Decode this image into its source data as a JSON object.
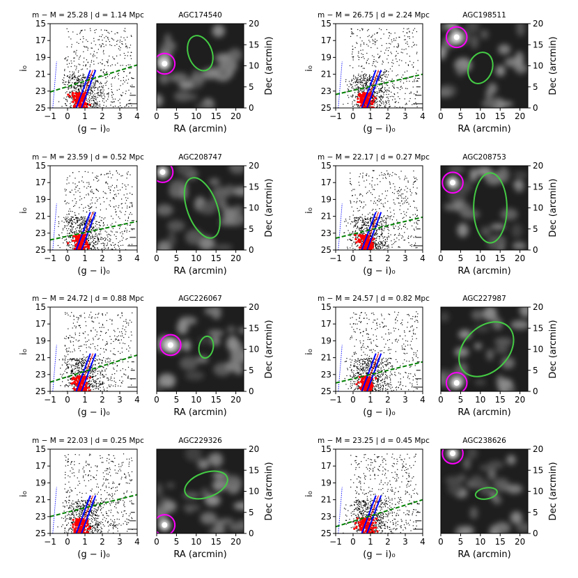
{
  "figure": {
    "cmd_xlabel": "(g − i)₀",
    "cmd_ylabel": "i₀",
    "map_xlabel": "RA (arcmin)",
    "map_ylabel": "Dec (arcmin)"
  },
  "colors": {
    "stars": "#000000",
    "rgb_stars": "#ff0000",
    "isochrone": "#0000ff",
    "completeness": "#008000",
    "galaxy_ellipse": "#44cc44",
    "bright_source_circle": "#ff00ff"
  },
  "chart_data": [
    {
      "type": "scatter",
      "cmd_title": "m − M = 25.28 | d = 1.14 Mpc",
      "map_title": "AGC174540",
      "cmd_xlim": [
        -1,
        4
      ],
      "cmd_ylim": [
        25,
        15
      ],
      "cmd_xticks": [
        "−1",
        "0",
        "1",
        "2",
        "3",
        "4"
      ],
      "cmd_yticks": [
        "15",
        "17",
        "19",
        "21",
        "23",
        "25"
      ],
      "map_xlim": [
        0,
        22
      ],
      "map_ylim": [
        0,
        20
      ],
      "map_xticks": [
        "0",
        "5",
        "10",
        "15",
        "20"
      ],
      "map_yticks": [
        "0",
        "5",
        "10",
        "15",
        "20"
      ],
      "completeness_line": {
        "x": [
          -1,
          4
        ],
        "i": [
          23.1,
          19.9
        ]
      },
      "ellipse": {
        "center": [
          11,
          13
        ],
        "semi_axes": [
          3,
          4.3
        ],
        "angle_deg": -20
      },
      "bright_circle": {
        "center": [
          2,
          10.5
        ],
        "radius": 2.6
      }
    },
    {
      "type": "scatter",
      "cmd_title": "m − M = 26.75 | d = 2.24 Mpc",
      "map_title": "AGC198511",
      "cmd_xlim": [
        -1,
        4
      ],
      "cmd_ylim": [
        25,
        15
      ],
      "cmd_xticks": [
        "−1",
        "0",
        "1",
        "2",
        "3",
        "4"
      ],
      "cmd_yticks": [
        "15",
        "17",
        "19",
        "21",
        "23",
        "25"
      ],
      "map_xlim": [
        0,
        22
      ],
      "map_ylim": [
        0,
        20
      ],
      "map_xticks": [
        "0",
        "5",
        "10",
        "15",
        "20"
      ],
      "map_yticks": [
        "0",
        "5",
        "10",
        "15",
        "20"
      ],
      "completeness_line": {
        "x": [
          -1,
          4
        ],
        "i": [
          23.4,
          21.0
        ]
      },
      "ellipse": {
        "center": [
          10,
          9.5
        ],
        "semi_axes": [
          3,
          3.8
        ],
        "angle_deg": 20
      },
      "bright_circle": {
        "center": [
          4,
          16.8
        ],
        "radius": 2.6
      }
    },
    {
      "type": "scatter",
      "cmd_title": "m − M = 23.59 | d = 0.52 Mpc",
      "map_title": "AGC208747",
      "cmd_xlim": [
        -1,
        4
      ],
      "cmd_ylim": [
        25,
        15
      ],
      "cmd_xticks": [
        "−1",
        "0",
        "1",
        "2",
        "3",
        "4"
      ],
      "cmd_yticks": [
        "15",
        "17",
        "19",
        "21",
        "23",
        "25"
      ],
      "map_xlim": [
        0,
        22
      ],
      "map_ylim": [
        0,
        20
      ],
      "map_xticks": [
        "0",
        "5",
        "10",
        "15",
        "20"
      ],
      "map_yticks": [
        "0",
        "5",
        "10",
        "15",
        "20"
      ],
      "completeness_line": {
        "x": [
          -1,
          4
        ],
        "i": [
          23.8,
          21.6
        ]
      },
      "ellipse": {
        "center": [
          11.5,
          10
        ],
        "semi_axes": [
          3.8,
          7.5
        ],
        "angle_deg": -20
      },
      "bright_circle": {
        "center": [
          1.5,
          18.5
        ],
        "radius": 2.6
      }
    },
    {
      "type": "scatter",
      "cmd_title": "m − M = 22.17 | d = 0.27 Mpc",
      "map_title": "AGC208753",
      "cmd_xlim": [
        -1,
        4
      ],
      "cmd_ylim": [
        25,
        15
      ],
      "cmd_xticks": [
        "−1",
        "0",
        "1",
        "2",
        "3",
        "4"
      ],
      "cmd_yticks": [
        "15",
        "17",
        "19",
        "21",
        "23",
        "25"
      ],
      "map_xlim": [
        0,
        22
      ],
      "map_ylim": [
        0,
        20
      ],
      "map_xticks": [
        "0",
        "5",
        "10",
        "15",
        "20"
      ],
      "map_yticks": [
        "0",
        "5",
        "10",
        "15",
        "20"
      ],
      "completeness_line": {
        "x": [
          -1,
          4
        ],
        "i": [
          23.6,
          21.1
        ]
      },
      "ellipse": {
        "center": [
          12.5,
          10
        ],
        "semi_axes": [
          4.2,
          8.3
        ],
        "angle_deg": 0
      },
      "bright_circle": {
        "center": [
          3,
          16
        ],
        "radius": 2.6
      }
    },
    {
      "type": "scatter",
      "cmd_title": "m − M = 24.72 | d = 0.88 Mpc",
      "map_title": "AGC226067",
      "cmd_xlim": [
        -1,
        4
      ],
      "cmd_ylim": [
        25,
        15
      ],
      "cmd_xticks": [
        "−1",
        "0",
        "1",
        "2",
        "3",
        "4"
      ],
      "cmd_yticks": [
        "15",
        "17",
        "19",
        "21",
        "23",
        "25"
      ],
      "map_xlim": [
        0,
        22
      ],
      "map_ylim": [
        0,
        20
      ],
      "map_xticks": [
        "0",
        "5",
        "10",
        "15",
        "20"
      ],
      "map_yticks": [
        "0",
        "5",
        "10",
        "15",
        "20"
      ],
      "completeness_line": {
        "x": [
          -1,
          4
        ],
        "i": [
          23.9,
          20.7
        ]
      },
      "ellipse": {
        "center": [
          12.5,
          10.5
        ],
        "semi_axes": [
          1.8,
          2.6
        ],
        "angle_deg": 10
      },
      "bright_circle": {
        "center": [
          3.5,
          11
        ],
        "radius": 2.6
      }
    },
    {
      "type": "scatter",
      "cmd_title": "m − M = 24.57 | d = 0.82 Mpc",
      "map_title": "AGC227987",
      "cmd_xlim": [
        -1,
        4
      ],
      "cmd_ylim": [
        25,
        15
      ],
      "cmd_xticks": [
        "−1",
        "0",
        "1",
        "2",
        "3",
        "4"
      ],
      "cmd_yticks": [
        "15",
        "17",
        "19",
        "21",
        "23",
        "25"
      ],
      "map_xlim": [
        0,
        22
      ],
      "map_ylim": [
        0,
        20
      ],
      "map_xticks": [
        "0",
        "5",
        "10",
        "15",
        "20"
      ],
      "map_yticks": [
        "0",
        "5",
        "10",
        "15",
        "20"
      ],
      "completeness_line": {
        "x": [
          -1,
          4
        ],
        "i": [
          24.0,
          21.5
        ]
      },
      "ellipse": {
        "center": [
          11.5,
          10
        ],
        "semi_axes": [
          5.6,
          7.5
        ],
        "angle_deg": 45
      },
      "bright_circle": {
        "center": [
          4,
          2
        ],
        "radius": 2.6
      }
    },
    {
      "type": "scatter",
      "cmd_title": "m − M = 22.03 | d = 0.25 Mpc",
      "map_title": "AGC229326",
      "cmd_xlim": [
        -1,
        4
      ],
      "cmd_ylim": [
        25,
        15
      ],
      "cmd_xticks": [
        "−1",
        "0",
        "1",
        "2",
        "3",
        "4"
      ],
      "cmd_yticks": [
        "15",
        "17",
        "19",
        "21",
        "23",
        "25"
      ],
      "map_xlim": [
        0,
        22
      ],
      "map_ylim": [
        0,
        20
      ],
      "map_xticks": [
        "0",
        "5",
        "10",
        "15",
        "20"
      ],
      "map_yticks": [
        "0",
        "5",
        "10",
        "15",
        "20"
      ],
      "completeness_line": {
        "x": [
          -1,
          4
        ],
        "i": [
          23.0,
          20.4
        ]
      },
      "ellipse": {
        "center": [
          12.5,
          11.5
        ],
        "semi_axes": [
          3.1,
          5.3
        ],
        "angle_deg": 70
      },
      "bright_circle": {
        "center": [
          2,
          2
        ],
        "radius": 2.6
      }
    },
    {
      "type": "scatter",
      "cmd_title": "m − M = 23.25 | d = 0.45 Mpc",
      "map_title": "AGC238626",
      "cmd_xlim": [
        -1,
        4
      ],
      "cmd_ylim": [
        25,
        15
      ],
      "cmd_xticks": [
        "−1",
        "0",
        "1",
        "2",
        "3",
        "4"
      ],
      "cmd_yticks": [
        "15",
        "17",
        "19",
        "21",
        "23",
        "25"
      ],
      "map_xlim": [
        0,
        22
      ],
      "map_ylim": [
        0,
        20
      ],
      "map_xticks": [
        "0",
        "5",
        "10",
        "15",
        "20"
      ],
      "map_yticks": [
        "0",
        "5",
        "10",
        "15",
        "20"
      ],
      "completeness_line": {
        "x": [
          -1,
          4
        ],
        "i": [
          24.2,
          21.0
        ]
      },
      "ellipse": {
        "center": [
          11.5,
          9.5
        ],
        "semi_axes": [
          1.4,
          2.6
        ],
        "angle_deg": 80
      },
      "bright_circle": {
        "center": [
          3,
          19
        ],
        "radius": 2.6
      }
    }
  ]
}
